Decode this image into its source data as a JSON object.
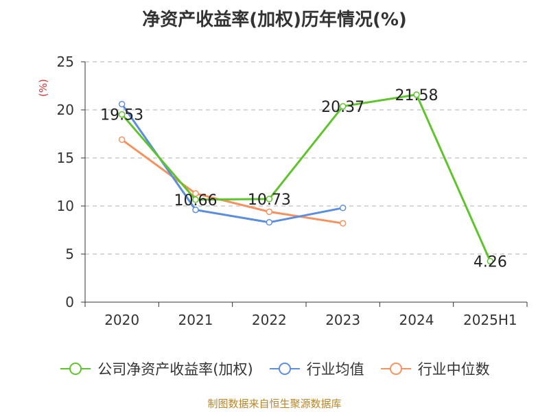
{
  "chart_data": {
    "type": "line",
    "title": "净资产收益率(加权)历年情况(%)",
    "ylabel": "(%)",
    "categories": [
      "2020",
      "2021",
      "2022",
      "2023",
      "2024",
      "2025H1"
    ],
    "ylim": [
      0,
      25
    ],
    "yticks": [
      0,
      5,
      10,
      15,
      20,
      25
    ],
    "grid": "horizontal-dashed",
    "legend_position": "bottom",
    "series": [
      {
        "name": "公司净资产收益率(加权)",
        "color": "#5ec42b",
        "values": [
          19.53,
          10.66,
          10.73,
          20.37,
          21.58,
          4.26
        ],
        "labels": [
          "19.53",
          "10.66",
          "10.73",
          "20.37",
          "21.58",
          "4.26"
        ]
      },
      {
        "name": "行业均值",
        "color": "#5b8ede",
        "values": [
          20.6,
          9.6,
          8.3,
          9.8,
          null,
          null
        ]
      },
      {
        "name": "行业中位数",
        "color": "#f5925d",
        "values": [
          16.9,
          11.3,
          9.4,
          8.2,
          null,
          null
        ]
      }
    ]
  },
  "source": "制图数据来自恒生聚源数据库"
}
